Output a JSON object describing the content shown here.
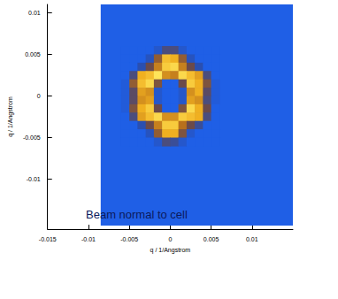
{
  "chart_data": {
    "type": "heatmap",
    "x_label": "q / 1/Angstrom",
    "y_label": "q / 1/Angstrom",
    "annotation": "Beam normal to cell",
    "xlim": [
      -0.015,
      0.015
    ],
    "xticks": [
      -0.015,
      -0.01,
      -0.005,
      0,
      0.005,
      0.01
    ],
    "ylim": [
      -0.016,
      0.011
    ],
    "yticks": [
      -0.01,
      -0.005,
      0,
      0.005,
      0.01
    ],
    "grid": false,
    "zlim": [
      0,
      1
    ],
    "field": {
      "xlim": [
        -0.0085,
        0.015
      ],
      "ylim": [
        -0.0155,
        0.011
      ],
      "value": 0
    },
    "cells": {
      "x": [
        -0.0055,
        -0.0045,
        -0.0035,
        -0.0025,
        -0.0015,
        -0.0005,
        0.0005,
        0.0015,
        0.0025,
        0.0035,
        0.0045,
        0.0055
      ],
      "y": [
        0.0055,
        0.0045,
        0.0035,
        0.0025,
        0.0015,
        0.0005,
        -0.0005,
        -0.0015,
        -0.0025,
        -0.0035,
        -0.0045,
        -0.0055
      ],
      "z": [
        [
          0,
          0,
          0,
          0,
          0.1,
          0.3,
          0.3,
          0.1,
          0,
          0,
          0,
          0
        ],
        [
          0,
          0,
          0,
          0.15,
          0.5,
          0.85,
          0.8,
          0.5,
          0.15,
          0,
          0,
          0
        ],
        [
          0,
          0,
          0.2,
          0.4,
          0.65,
          0.9,
          0.95,
          0.65,
          0.4,
          0.2,
          0,
          0
        ],
        [
          0,
          0.3,
          0.8,
          0.85,
          1.0,
          0.7,
          0.65,
          0.95,
          0.85,
          0.75,
          0.3,
          0
        ],
        [
          0.05,
          0.5,
          0.85,
          0.95,
          0.45,
          0,
          0,
          0.4,
          0.9,
          0.8,
          0.45,
          0.05
        ],
        [
          0.05,
          0.35,
          0.75,
          0.7,
          0.1,
          0,
          0,
          0.1,
          0.7,
          0.8,
          0.35,
          0.05
        ],
        [
          0.05,
          0.35,
          0.7,
          0.75,
          0.1,
          0,
          0,
          0.1,
          0.75,
          0.7,
          0.3,
          0.05
        ],
        [
          0.05,
          0.45,
          0.8,
          0.9,
          0.4,
          0,
          0,
          0.45,
          0.95,
          0.8,
          0.4,
          0
        ],
        [
          0,
          0.3,
          0.75,
          0.85,
          0.95,
          0.7,
          0.7,
          0.9,
          0.85,
          0.8,
          0.3,
          0
        ],
        [
          0,
          0,
          0.2,
          0.4,
          0.65,
          0.9,
          0.9,
          0.6,
          0.4,
          0.25,
          0,
          0
        ],
        [
          0,
          0,
          0,
          0.15,
          0.5,
          0.8,
          0.8,
          0.45,
          0.1,
          0,
          0,
          0
        ],
        [
          0,
          0,
          0,
          0,
          0.1,
          0.3,
          0.25,
          0.1,
          0,
          0,
          0,
          0
        ]
      ]
    }
  }
}
